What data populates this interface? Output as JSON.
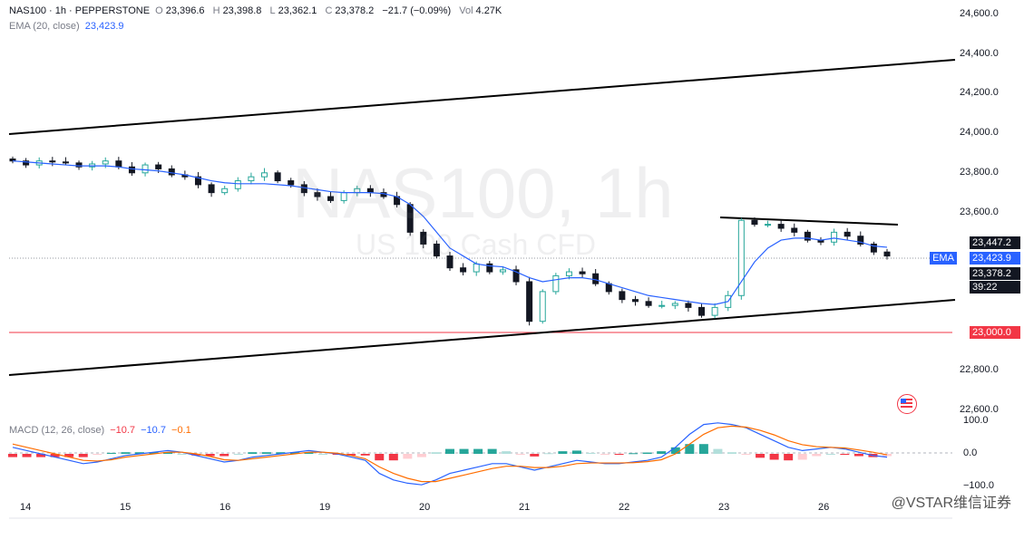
{
  "symbol": {
    "name": "NAS100",
    "interval": "1h",
    "broker": "PEPPERSTONE",
    "title": "NAS100 · 1h · PEPPERSTONE",
    "subtitle": "US 100 Cash CFD",
    "ohlc": {
      "o_label": "O",
      "o": "23,396.6",
      "h_label": "H",
      "h": "23,398.8",
      "l_label": "L",
      "l": "23,362.1",
      "c_label": "C",
      "c": "23,378.2",
      "change": "−21.7 (−0.09%)",
      "vol_label": "Vol",
      "vol": "4.27K"
    }
  },
  "ema": {
    "label": "EMA (20, close)",
    "value": "23,423.9",
    "tag": "EMA",
    "color": "#2962ff"
  },
  "macd": {
    "label": "MACD (12, 26, close)",
    "hist": "−10.7",
    "macd": "−10.7",
    "signal": "−0.1",
    "axis": [
      "100.0",
      "0.0",
      "−100.0"
    ]
  },
  "price_axis": [
    "24,600.0",
    "24,400.0",
    "24,200.0",
    "24,000.0",
    "23,800.0",
    "23,600.0",
    "22,800.0",
    "22,600.0"
  ],
  "time_axis": [
    "14",
    "15",
    "16",
    "19",
    "20",
    "21",
    "22",
    "23",
    "26"
  ],
  "price_tags": {
    "high": "23,447.2",
    "ema": "23,423.9",
    "last": "23,378.2",
    "countdown": "39:22",
    "level": "23,000.0"
  },
  "watermark_credit": "@VSTAR维信证券",
  "colors": {
    "up": "#26a69a",
    "down": "#131722",
    "ema": "#2962ff",
    "level": "#f23645",
    "macd": "#2962ff",
    "signal": "#ff6d00",
    "hist_pos": "#26a69a",
    "hist_neg": "#f23645"
  },
  "chart_data": {
    "type": "candlestick",
    "title": "NAS100 · 1h · PEPPERSTONE",
    "ylim": [
      22500,
      24650
    ],
    "close_series_approx": [
      23860,
      23840,
      23860,
      23855,
      23850,
      23830,
      23845,
      23860,
      23830,
      23800,
      23840,
      23820,
      23790,
      23780,
      23740,
      23700,
      23720,
      23760,
      23780,
      23800,
      23760,
      23740,
      23700,
      23680,
      23660,
      23700,
      23720,
      23700,
      23680,
      23640,
      23500,
      23440,
      23380,
      23320,
      23300,
      23340,
      23300,
      23310,
      23250,
      23050,
      23200,
      23280,
      23300,
      23290,
      23240,
      23200,
      23160,
      23150,
      23130,
      23130,
      23140,
      23120,
      23080,
      23120,
      23180,
      23560,
      23540,
      23540,
      23520,
      23500,
      23460,
      23450,
      23500,
      23480,
      23440,
      23400,
      23380
    ],
    "ema_series_approx": [
      23860,
      23855,
      23850,
      23845,
      23840,
      23835,
      23835,
      23835,
      23830,
      23820,
      23815,
      23810,
      23800,
      23790,
      23775,
      23760,
      23750,
      23745,
      23745,
      23745,
      23740,
      23735,
      23725,
      23715,
      23705,
      23700,
      23700,
      23700,
      23695,
      23680,
      23640,
      23580,
      23500,
      23420,
      23380,
      23340,
      23330,
      23325,
      23300,
      23270,
      23250,
      23260,
      23270,
      23270,
      23260,
      23240,
      23220,
      23200,
      23180,
      23170,
      23160,
      23150,
      23140,
      23135,
      23150,
      23250,
      23350,
      23420,
      23460,
      23470,
      23470,
      23460,
      23470,
      23460,
      23450,
      23430,
      23424
    ],
    "trendlines": [
      {
        "name": "upper channel",
        "from": [
          "start",
          23990
        ],
        "to": [
          "end",
          24350
        ]
      },
      {
        "name": "lower channel",
        "from": [
          "start",
          22760
        ],
        "to": [
          "end",
          23160
        ]
      },
      {
        "name": "descending resistance",
        "from": [
          "23",
          23570
        ],
        "to": [
          "26",
          23545
        ]
      }
    ],
    "level": 23000,
    "macd_approx": [
      20,
      10,
      0,
      -10,
      -20,
      -30,
      -25,
      -15,
      -5,
      0,
      5,
      10,
      5,
      -5,
      -15,
      -25,
      -20,
      -10,
      -5,
      0,
      5,
      10,
      5,
      0,
      -10,
      -20,
      -60,
      -80,
      -90,
      -95,
      -80,
      -60,
      -50,
      -40,
      -30,
      -30,
      -40,
      -50,
      -40,
      -30,
      -20,
      -25,
      -30,
      -30,
      -25,
      -20,
      -10,
      20,
      60,
      90,
      95,
      90,
      80,
      60,
      40,
      20,
      10,
      15,
      20,
      15,
      5,
      -5,
      -10
    ],
    "signal_approx": [
      30,
      20,
      10,
      0,
      -10,
      -20,
      -22,
      -18,
      -10,
      -5,
      0,
      5,
      5,
      0,
      -8,
      -18,
      -20,
      -15,
      -10,
      -5,
      0,
      5,
      5,
      2,
      -5,
      -15,
      -40,
      -60,
      -75,
      -85,
      -85,
      -75,
      -65,
      -55,
      -45,
      -38,
      -38,
      -42,
      -42,
      -38,
      -30,
      -28,
      -28,
      -28,
      -27,
      -24,
      -18,
      0,
      30,
      60,
      80,
      85,
      82,
      72,
      58,
      40,
      28,
      22,
      20,
      18,
      12,
      5,
      -3
    ]
  }
}
